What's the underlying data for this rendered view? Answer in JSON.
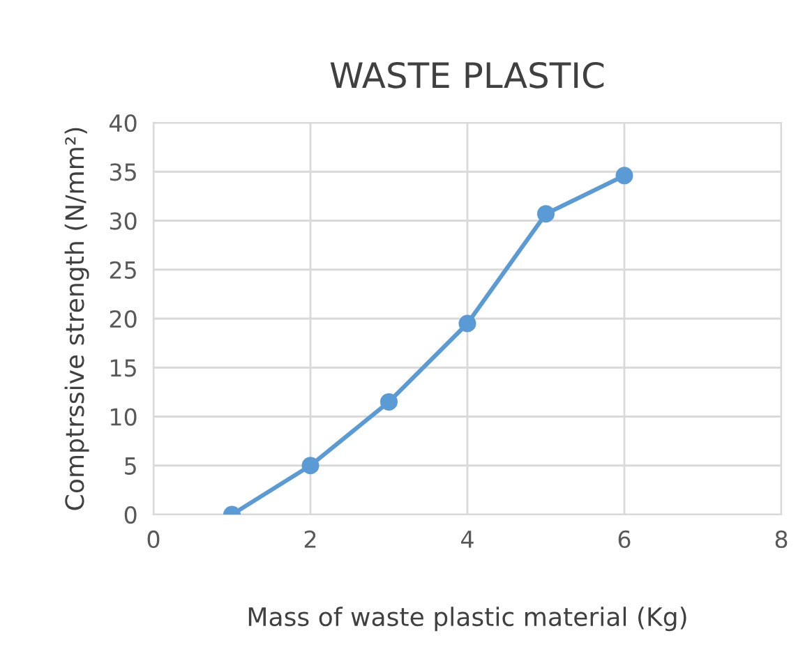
{
  "chart_data": {
    "type": "line",
    "title": "WASTE PLASTIC",
    "xlabel": "Mass of waste plastic material (Kg)",
    "ylabel": "Comptrssive strength (N/mm²)",
    "series": [
      {
        "color": "#5b9bd5",
        "x": [
          1,
          2,
          3,
          4,
          5,
          6
        ],
        "values": [
          0,
          5,
          11.5,
          19.5,
          30.7,
          34.6
        ]
      }
    ],
    "xlim": [
      0,
      8
    ],
    "xticks": [
      0,
      2,
      4,
      6,
      8
    ],
    "ylim": [
      0,
      40
    ],
    "yticks": [
      0,
      5,
      10,
      15,
      20,
      25,
      30,
      35,
      40
    ],
    "grid": true,
    "marker": "circle",
    "line_style": "solid"
  }
}
